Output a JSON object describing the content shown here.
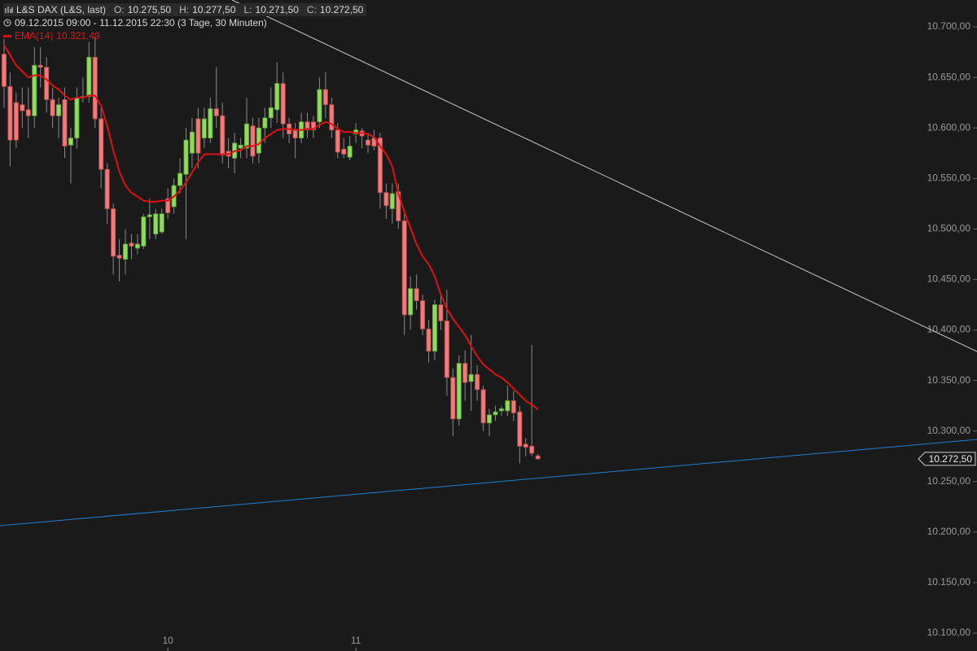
{
  "header": {
    "instrument": "L&S DAX (L&S, last)",
    "quote": [
      {
        "label": "O:",
        "value": "10.275,50"
      },
      {
        "label": "H:",
        "value": "10.277,50"
      },
      {
        "label": "L:",
        "value": "10.271,50"
      },
      {
        "label": "C:",
        "value": "10.272,50"
      }
    ],
    "period": "09.12.2015 09:00 - 11.12.2015 22:30 (3 Tage, 30 Minuten)"
  },
  "chart_data": {
    "type": "candlestick",
    "categories": [
      null,
      null,
      null,
      null,
      null,
      null,
      null,
      null,
      null,
      null,
      null,
      null,
      null,
      null,
      null,
      null,
      null,
      null,
      null,
      null,
      null,
      null,
      null,
      null,
      null,
      null,
      null,
      "10",
      null,
      null,
      null,
      null,
      null,
      null,
      null,
      null,
      null,
      null,
      null,
      null,
      null,
      null,
      null,
      null,
      null,
      null,
      null,
      null,
      null,
      null,
      null,
      null,
      null,
      null,
      null,
      null,
      null,
      null,
      "11",
      null,
      null,
      null,
      null,
      null,
      null,
      null,
      null,
      null,
      null,
      null,
      null,
      null,
      null,
      null,
      null,
      null,
      null,
      null,
      null,
      null,
      null,
      null,
      null,
      null,
      null,
      null,
      null,
      null,
      null
    ],
    "open": [
      10673,
      10641,
      10625,
      10623,
      10618,
      10612,
      10662,
      10660,
      10628,
      10612,
      10628,
      10583,
      10590,
      10630,
      10631,
      10670,
      10609,
      10559,
      10520,
      10474,
      10470,
      10486,
      10481,
      10483,
      10512,
      10495,
      10497,
      10530,
      10522,
      10543,
      10554,
      10575,
      10609,
      10590,
      10590,
      10619,
      10612,
      10577,
      10570,
      10580,
      10580,
      10602,
      10575,
      10600,
      10610,
      10618,
      10644,
      10604,
      10598,
      10590,
      10606,
      10606,
      10606,
      10638,
      10623,
      10598,
      10579,
      10571,
      10594,
      10597,
      10588,
      10590,
      10590,
      10536,
      10520,
      10537,
      10508,
      10415,
      10441,
      10429,
      10401,
      10379,
      10425,
      10409,
      10353,
      10312,
      10367,
      10349,
      10356,
      10341,
      10308,
      10316,
      10320,
      10320,
      10330,
      10319,
      10287,
      10285,
      10275.5
    ],
    "high": [
      10688,
      10655,
      10635,
      10640,
      10640,
      10680,
      10680,
      10670,
      10640,
      10630,
      10640,
      10600,
      10640,
      10650,
      10685,
      10690,
      10620,
      10565,
      10525,
      10490,
      10500,
      10495,
      10495,
      10515,
      10530,
      10520,
      10520,
      10540,
      10550,
      10570,
      10600,
      10610,
      10620,
      10620,
      10630,
      10660,
      10625,
      10590,
      10595,
      10590,
      10630,
      10610,
      10610,
      10620,
      10640,
      10665,
      10655,
      10610,
      10605,
      10615,
      10615,
      10612,
      10650,
      10655,
      10630,
      10605,
      10590,
      10592,
      10605,
      10600,
      10595,
      10598,
      10595,
      10545,
      10545,
      10545,
      10515,
      10453,
      10455,
      10435,
      10410,
      10430,
      10435,
      10440,
      10362,
      10375,
      10380,
      10395,
      10365,
      10345,
      10322,
      10325,
      10325,
      10345,
      10340,
      10325,
      10293,
      10385,
      10277.5
    ],
    "low": [
      10620,
      10562,
      10580,
      10600,
      10590,
      10600,
      10640,
      10615,
      10600,
      10590,
      10570,
      10545,
      10580,
      10625,
      10625,
      10600,
      10540,
      10505,
      10455,
      10448,
      10455,
      10470,
      10475,
      10480,
      10490,
      10490,
      10495,
      10510,
      10515,
      10535,
      10490,
      10560,
      10560,
      10580,
      10585,
      10600,
      10565,
      10560,
      10555,
      10570,
      10570,
      10565,
      10565,
      10585,
      10600,
      10605,
      10590,
      10585,
      10570,
      10585,
      10590,
      10590,
      10600,
      10610,
      10590,
      10570,
      10570,
      10568,
      10585,
      10580,
      10575,
      10578,
      10520,
      10510,
      10505,
      10500,
      10395,
      10400,
      10420,
      10395,
      10368,
      10370,
      10400,
      10335,
      10295,
      10305,
      10330,
      10320,
      10330,
      10300,
      10295,
      10310,
      10315,
      10315,
      10310,
      10268,
      10275,
      10275,
      10271.5
    ],
    "close": [
      10641,
      10588,
      10588,
      10617,
      10612,
      10662,
      10660,
      10628,
      10612,
      10623,
      10582,
      10590,
      10630,
      10631,
      10670,
      10609,
      10559,
      10520,
      10473,
      10471,
      10485,
      10483,
      10485,
      10512,
      10514,
      10515,
      10515,
      10516,
      10543,
      10555,
      10588,
      10596,
      10575,
      10609,
      10619,
      10612,
      10573,
      10572,
      10585,
      10583,
      10604,
      10572,
      10600,
      10610,
      10620,
      10644,
      10604,
      10594,
      10590,
      10606,
      10598,
      10598,
      10638,
      10623,
      10598,
      10576,
      10574,
      10582,
      10598,
      10592,
      10583,
      10582,
      10536,
      10523,
      10535,
      10508,
      10415,
      10441,
      10429,
      10401,
      10379,
      10425,
      10409,
      10353,
      10312,
      10367,
      10348,
      10356,
      10341,
      10308,
      10316,
      10319,
      10322,
      10330,
      10318,
      10285,
      10284,
      10278,
      10272.5
    ],
    "up_color": "#8fdc5c",
    "down_color": "#f07a7a",
    "ema": {
      "name": "EMA(14)",
      "color": "#dd1111",
      "value_label": "10.321,49",
      "values": [
        10682,
        10672,
        10662,
        10656,
        10650,
        10652,
        10652,
        10648,
        10642,
        10638,
        10632,
        10628,
        10630,
        10630,
        10632,
        10632,
        10622,
        10602,
        10578,
        10557,
        10543,
        10536,
        10532,
        10528,
        10527,
        10527,
        10528,
        10528,
        10532,
        10538,
        10546,
        10556,
        10566,
        10574,
        10574,
        10574,
        10574,
        10574,
        10577,
        10578,
        10582,
        10582,
        10584,
        10590,
        10594,
        10598,
        10599,
        10599,
        10598,
        10598,
        10599,
        10599,
        10603,
        10606,
        10604,
        10599,
        10596,
        10596,
        10595,
        10595,
        10594,
        10591,
        10582,
        10574,
        10562,
        10535,
        10517,
        10501,
        10485,
        10473,
        10465,
        10453,
        10435,
        10421,
        10411,
        10403,
        10395,
        10384,
        10374,
        10366,
        10361,
        10356,
        10353,
        10348,
        10342,
        10336,
        10330,
        10326,
        10321.49
      ]
    },
    "trendlines": [
      {
        "color": "#c8c8c8",
        "x": [
          37.6,
          160.4
        ],
        "values": [
          10726.6,
          10378.7
        ]
      },
      {
        "color": "#1e7fd8",
        "x": [
          -0.67,
          160.4
        ],
        "values": [
          10206.3,
          10291.7
        ]
      }
    ],
    "last_price": {
      "value": 10272.5,
      "label": "10.272,50"
    },
    "xlim": [
      -0.67,
      151
    ],
    "ylim": [
      10082.3,
      10726.6
    ],
    "yticks": [
      {
        "value": 10700,
        "label": "10.700,00"
      },
      {
        "value": 10650,
        "label": "10.650,00"
      },
      {
        "value": 10600,
        "label": "10.600,00"
      },
      {
        "value": 10550,
        "label": "10.550,00"
      },
      {
        "value": 10500,
        "label": "10.500,00"
      },
      {
        "value": 10450,
        "label": "10.450,00"
      },
      {
        "value": 10400,
        "label": "10.400,00"
      },
      {
        "value": 10350,
        "label": "10.350,00"
      },
      {
        "value": 10300,
        "label": "10.300,00"
      },
      {
        "value": 10250,
        "label": "10.250,00"
      },
      {
        "value": 10200,
        "label": "10.200,00"
      },
      {
        "value": 10150,
        "label": "10.150,00"
      },
      {
        "value": 10100,
        "label": "10.100,00"
      }
    ]
  }
}
